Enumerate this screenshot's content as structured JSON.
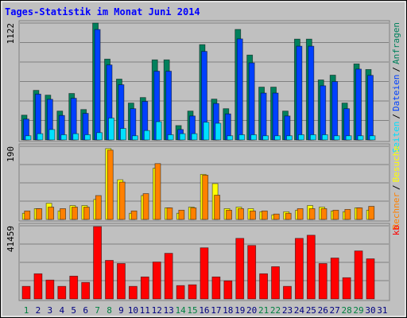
{
  "title": "Tages-Statistik im Monat Juni 2014",
  "legend_separator": "/",
  "chart_data": [
    {
      "type": "bar",
      "ylim": [
        0,
        1122
      ],
      "yticks": [
        1122
      ],
      "grid_divisions": 6,
      "series": [
        {
          "name": "Anfragen",
          "color": "#00805c",
          "values": [
            238,
            476,
            430,
            277,
            446,
            292,
            1122,
            776,
            584,
            354,
            407,
            769,
            769,
            138,
            277,
            915,
            392,
            300,
            1061,
            815,
            507,
            507,
            277,
            968,
            968,
            576,
            622,
            354,
            730,
            676,
            null
          ]
        },
        {
          "name": "Dateien",
          "color": "#0040ff",
          "values": [
            200,
            440,
            390,
            235,
            400,
            255,
            1060,
            720,
            530,
            300,
            370,
            660,
            660,
            100,
            230,
            850,
            350,
            250,
            970,
            740,
            450,
            450,
            230,
            900,
            900,
            520,
            560,
            300,
            680,
            620,
            null
          ]
        },
        {
          "name": "Seiten",
          "color": "#00e0ff",
          "values": [
            40,
            60,
            100,
            50,
            60,
            50,
            70,
            210,
            110,
            40,
            90,
            175,
            50,
            60,
            60,
            170,
            160,
            40,
            50,
            50,
            40,
            40,
            40,
            50,
            50,
            50,
            40,
            40,
            40,
            40,
            null
          ]
        }
      ]
    },
    {
      "type": "bar",
      "ylim": [
        0,
        190
      ],
      "yticks": [
        190
      ],
      "grid_divisions": 4,
      "series": [
        {
          "name": "Besuche",
          "color": "#ffff00",
          "values": [
            16,
            28,
            42,
            22,
            36,
            36,
            52,
            184,
            103,
            16,
            62,
            133,
            30,
            16,
            32,
            117,
            93,
            28,
            32,
            28,
            20,
            12,
            20,
            24,
            36,
            32,
            22,
            20,
            30,
            24,
            null
          ]
        },
        {
          "name": "Rechner",
          "color": "#ff8000",
          "values": [
            22,
            28,
            32,
            28,
            32,
            32,
            62,
            180,
            97,
            22,
            67,
            145,
            30,
            24,
            30,
            115,
            63,
            24,
            28,
            22,
            22,
            14,
            16,
            28,
            28,
            28,
            24,
            26,
            30,
            34,
            null
          ]
        }
      ]
    },
    {
      "type": "bar",
      "ylim": [
        0,
        41459
      ],
      "yticks": [
        41459
      ],
      "grid_divisions": 4,
      "categories": [
        "1",
        "2",
        "3",
        "4",
        "5",
        "6",
        "7",
        "8",
        "9",
        "10",
        "11",
        "12",
        "13",
        "14",
        "15",
        "16",
        "17",
        "18",
        "19",
        "20",
        "21",
        "22",
        "23",
        "24",
        "25",
        "26",
        "27",
        "28",
        "29",
        "30",
        "31"
      ],
      "highlight_indices": [
        0,
        6,
        7,
        13,
        14,
        20,
        21,
        27,
        28
      ],
      "highlight_color": "#008040",
      "label_color": "#000080",
      "series": [
        {
          "name": "kb",
          "color": "#ff0000",
          "values": [
            7130,
            14270,
            10700,
            7130,
            12930,
            9360,
            41000,
            21850,
            20060,
            7130,
            12480,
            20950,
            25860,
            7580,
            8020,
            28980,
            12480,
            10250,
            34330,
            30310,
            14270,
            18280,
            7130,
            34330,
            36120,
            20060,
            23190,
            12040,
            27200,
            22740,
            null
          ]
        }
      ]
    }
  ]
}
